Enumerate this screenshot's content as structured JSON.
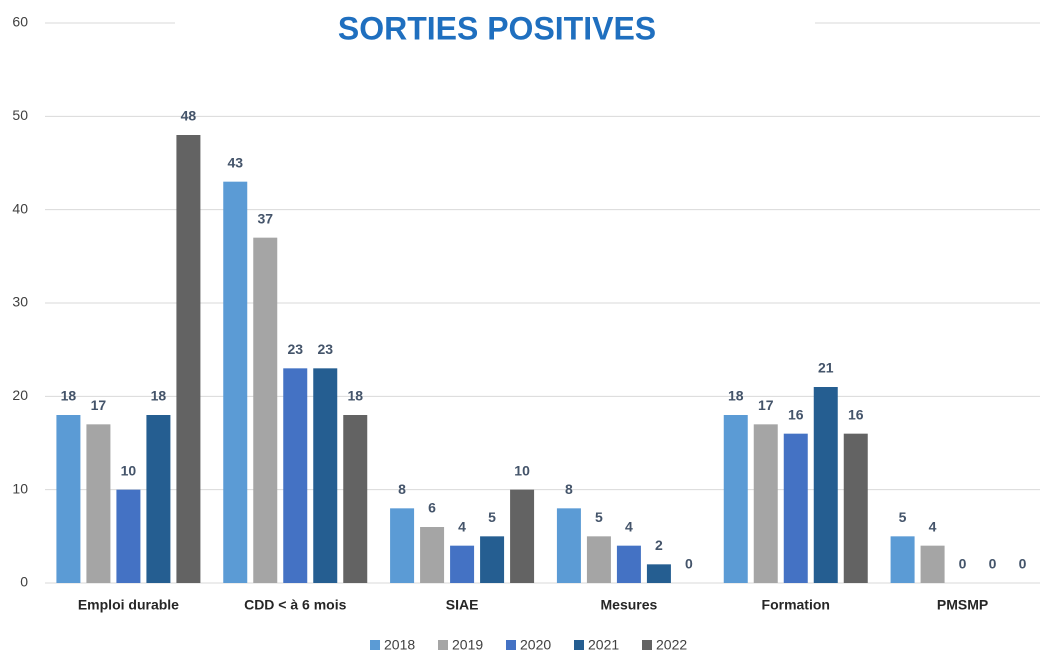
{
  "chart_data": {
    "type": "bar",
    "title": "SORTIES POSITIVES",
    "categories": [
      "Emploi durable",
      "CDD < à 6 mois",
      "SIAE",
      "Mesures",
      "Formation",
      "PMSMP"
    ],
    "series": [
      {
        "name": "2018",
        "color": "#5b9bd5",
        "values": [
          18,
          43,
          8,
          8,
          18,
          5
        ]
      },
      {
        "name": "2019",
        "color": "#a5a5a5",
        "values": [
          17,
          37,
          6,
          5,
          17,
          4
        ]
      },
      {
        "name": "2020",
        "color": "#4472c4",
        "values": [
          10,
          23,
          4,
          4,
          16,
          0
        ]
      },
      {
        "name": "2021",
        "color": "#255e91",
        "values": [
          18,
          23,
          5,
          2,
          21,
          0
        ]
      },
      {
        "name": "2022",
        "color": "#636363",
        "values": [
          48,
          18,
          10,
          0,
          16,
          0
        ]
      }
    ],
    "ylim": [
      0,
      60
    ],
    "yticks": [
      0,
      10,
      20,
      30,
      40,
      50,
      60
    ],
    "grid": true,
    "legend": "bottom"
  }
}
